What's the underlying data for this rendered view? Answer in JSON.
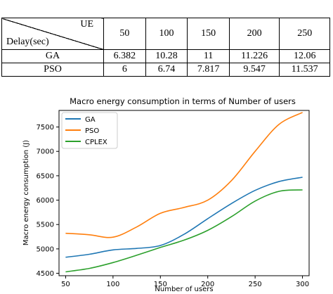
{
  "table": {
    "corner_top": "UE",
    "corner_bottom": "Delay(sec)",
    "columns": [
      "50",
      "100",
      "150",
      "200",
      "250"
    ],
    "rows": [
      {
        "label": "GA",
        "values": [
          "6.382",
          "10.28",
          "11",
          "11.226",
          "12.06"
        ]
      },
      {
        "label": "PSO",
        "values": [
          "6",
          "6.74",
          "7.817",
          "9.547",
          "11.537"
        ]
      }
    ]
  },
  "chart_data": {
    "type": "line",
    "title": "Macro energy consumption in terms of Number of users",
    "xlabel": "Number of users",
    "ylabel": "Macro energy consumption (J)",
    "xlim": [
      43,
      307
    ],
    "ylim": [
      4450,
      7840
    ],
    "xticks": [
      50,
      100,
      150,
      200,
      250,
      300
    ],
    "yticks": [
      4500,
      5000,
      5500,
      6000,
      6500,
      7000,
      7500
    ],
    "legend_position": "top-left",
    "grid": false,
    "series": [
      {
        "name": "GA",
        "color": "#1f77b4",
        "x": [
          50,
          75,
          100,
          125,
          150,
          175,
          200,
          225,
          250,
          275,
          300
        ],
        "y": [
          4830,
          4890,
          4980,
          5010,
          5070,
          5300,
          5620,
          5930,
          6200,
          6380,
          6470
        ]
      },
      {
        "name": "PSO",
        "color": "#ff7f0e",
        "x": [
          50,
          75,
          100,
          125,
          150,
          175,
          200,
          225,
          250,
          275,
          300
        ],
        "y": [
          5320,
          5290,
          5240,
          5450,
          5730,
          5850,
          6000,
          6400,
          7000,
          7550,
          7800
        ]
      },
      {
        "name": "CPLEX",
        "color": "#2ca02c",
        "x": [
          50,
          75,
          100,
          125,
          150,
          175,
          200,
          225,
          250,
          275,
          300
        ],
        "y": [
          4530,
          4600,
          4720,
          4870,
          5030,
          5180,
          5380,
          5660,
          5980,
          6180,
          6210
        ]
      }
    ]
  }
}
